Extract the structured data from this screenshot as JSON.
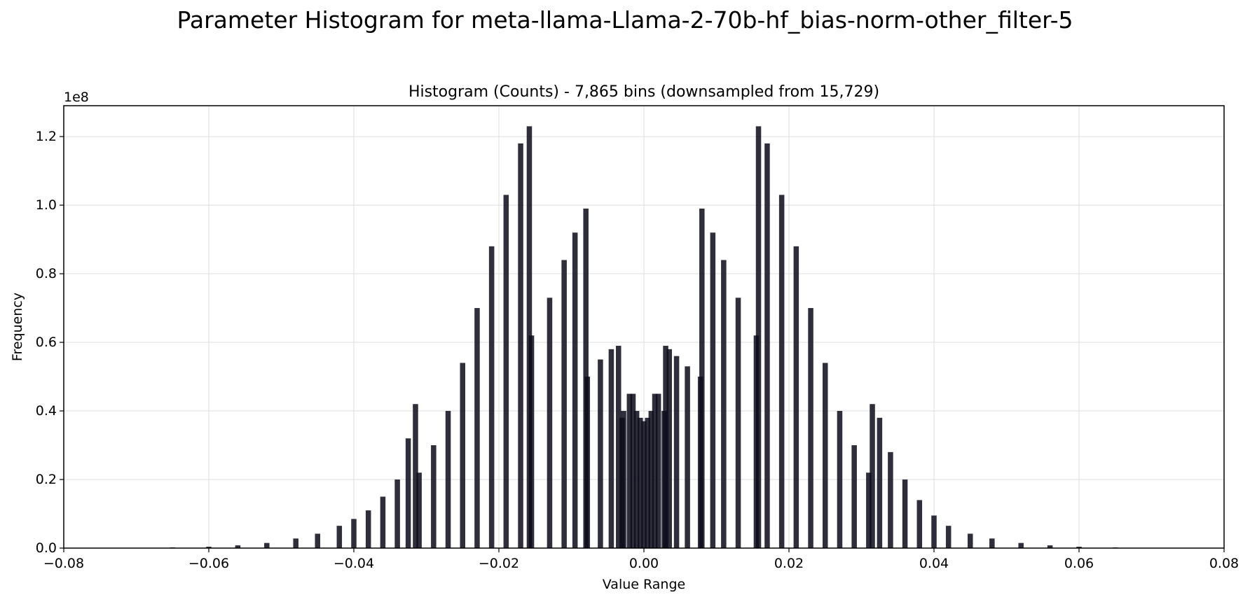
{
  "chart_data": {
    "type": "bar",
    "title": "Parameter Histogram for meta-llama-Llama-2-70b-hf_bias-norm-other_filter-5",
    "subtitle": "Histogram (Counts) - 7,865 bins (downsampled from 15,729)",
    "xlabel": "Value Range",
    "ylabel": "Frequency",
    "y_offset_label": "1e8",
    "xlim": [
      -0.08,
      0.08
    ],
    "ylim": [
      0,
      129000000
    ],
    "x_ticks": [
      -0.08,
      -0.06,
      -0.04,
      -0.02,
      0.0,
      0.02,
      0.04,
      0.06,
      0.08
    ],
    "x_tick_labels": [
      "−0.08",
      "−0.06",
      "−0.04",
      "−0.02",
      "0.00",
      "0.02",
      "0.04",
      "0.06",
      "0.08"
    ],
    "y_ticks": [
      0,
      20000000,
      40000000,
      60000000,
      80000000,
      100000000,
      120000000
    ],
    "y_tick_labels": [
      "0.0",
      "0.2",
      "0.4",
      "0.6",
      "0.8",
      "1.0",
      "1.2"
    ],
    "grid": true,
    "bar_color": "#0a0a1a",
    "series": [
      {
        "x": [
          -0.07,
          -0.065,
          -0.06,
          -0.056,
          -0.052,
          -0.048,
          -0.045,
          -0.042,
          -0.04,
          -0.038,
          -0.036,
          -0.034,
          -0.0325,
          -0.0315,
          -0.031,
          -0.029,
          -0.027,
          -0.025,
          -0.023,
          -0.021,
          -0.019,
          -0.017,
          -0.0158,
          -0.0155,
          -0.013,
          -0.011,
          -0.0095,
          -0.008,
          -0.0078,
          -0.006,
          -0.0045,
          -0.0035,
          -0.003,
          -0.0028,
          -0.002,
          -0.0015,
          -0.001,
          -0.0005,
          0.0,
          0.0005,
          0.001,
          0.0015,
          0.002,
          0.0028,
          0.003,
          0.0035,
          0.0045,
          0.006,
          0.0078,
          0.008,
          0.0095,
          0.011,
          0.013,
          0.0155,
          0.0158,
          0.017,
          0.019,
          0.021,
          0.023,
          0.025,
          0.027,
          0.029,
          0.031,
          0.0315,
          0.0325,
          0.034,
          0.036,
          0.038,
          0.04,
          0.042,
          0.045,
          0.048,
          0.052,
          0.056,
          0.06,
          0.065,
          0.07
        ],
        "values": [
          100000,
          200000,
          400000,
          800000,
          1500000,
          2800000,
          4200000,
          6500000,
          8500000,
          11000000,
          15000000,
          20000000,
          32000000,
          42000000,
          22000000,
          30000000,
          40000000,
          54000000,
          70000000,
          88000000,
          103000000,
          118000000,
          123000000,
          62000000,
          73000000,
          84000000,
          92000000,
          99000000,
          50000000,
          55000000,
          58000000,
          59000000,
          38000000,
          40000000,
          45000000,
          45000000,
          40000000,
          38000000,
          37000000,
          38000000,
          40000000,
          45000000,
          45000000,
          40000000,
          59000000,
          58000000,
          56000000,
          53000000,
          50000000,
          99000000,
          92000000,
          84000000,
          73000000,
          62000000,
          123000000,
          118000000,
          103000000,
          88000000,
          70000000,
          54000000,
          40000000,
          30000000,
          22000000,
          42000000,
          38000000,
          28000000,
          20000000,
          14000000,
          9500000,
          6500000,
          4200000,
          2800000,
          1500000,
          800000,
          400000,
          200000,
          100000
        ]
      }
    ]
  }
}
